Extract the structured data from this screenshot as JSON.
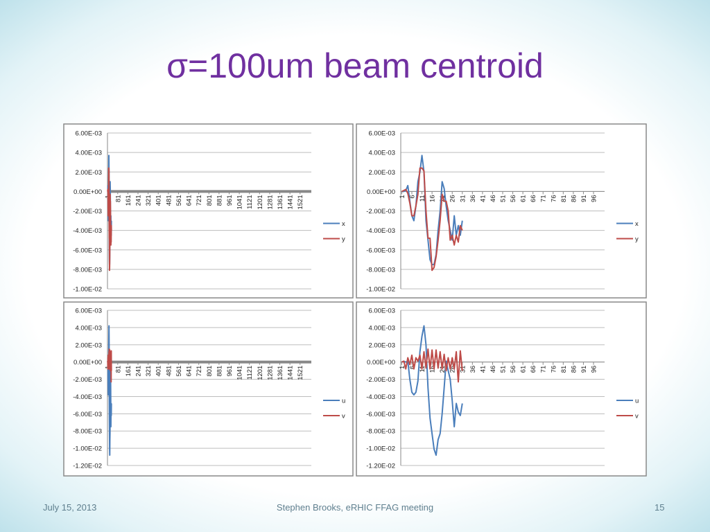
{
  "slide": {
    "title": "σ=100um beam centroid",
    "date": "July 15, 2013",
    "footer": "Stephen Brooks, eRHIC FFAG meeting",
    "page_number": "15"
  },
  "chart_data": [
    {
      "type": "line",
      "legend": "right",
      "grid": true,
      "x": [
        1,
        2,
        3,
        4,
        5,
        6,
        7,
        8,
        9,
        10,
        11,
        12,
        13,
        14,
        15,
        16,
        17,
        18,
        19,
        20,
        21,
        22,
        23,
        24,
        25,
        26,
        27,
        28,
        29,
        30,
        31
      ],
      "xlim": [
        0,
        1610
      ],
      "xticks": [
        1,
        81,
        161,
        241,
        321,
        401,
        481,
        561,
        641,
        721,
        801,
        881,
        961,
        1041,
        1121,
        1201,
        1281,
        1361,
        1441,
        1521
      ],
      "ylim": [
        -0.01,
        0.006
      ],
      "yticks": [
        {
          "value": -0.01,
          "label": "-1.00E-02"
        },
        {
          "value": -0.008,
          "label": "-8.00E-03"
        },
        {
          "value": -0.006,
          "label": "-6.00E-03"
        },
        {
          "value": -0.004,
          "label": "-4.00E-03"
        },
        {
          "value": -0.002,
          "label": "-2.00E-03"
        },
        {
          "value": 0,
          "label": "0.00E+00"
        },
        {
          "value": 0.002,
          "label": "2.00E-03"
        },
        {
          "value": 0.004,
          "label": "4.00E-03"
        },
        {
          "value": 0.006,
          "label": "6.00E-03"
        }
      ],
      "series": [
        {
          "name": "x",
          "color": "#4a7ebb",
          "values": [
            0,
            0,
            0.0001,
            0.0006,
            -0.001,
            -0.0025,
            -0.003,
            -0.0015,
            0.001,
            0.002,
            0.0037,
            0.002,
            -0.003,
            -0.005,
            -0.007,
            -0.0075,
            -0.0075,
            -0.0065,
            -0.004,
            -0.002,
            0.001,
            0.0003,
            -0.0015,
            -0.003,
            -0.004,
            -0.005,
            -0.0025,
            -0.0045,
            -0.0035,
            -0.0045,
            -0.003
          ]
        },
        {
          "name": "y",
          "color": "#be4b48",
          "values": [
            0,
            0.0001,
            0.0002,
            -0.0002,
            -0.0012,
            -0.0025,
            -0.0025,
            -0.0015,
            -0.0003,
            0.0024,
            0.0024,
            0.0021,
            -0.002,
            -0.0048,
            -0.0048,
            -0.0081,
            -0.0078,
            -0.0067,
            -0.005,
            -0.003,
            -0.0003,
            -0.001,
            -0.001,
            -0.002,
            -0.005,
            -0.0045,
            -0.0055,
            -0.0045,
            -0.0052,
            -0.0035,
            -0.004
          ]
        }
      ]
    },
    {
      "type": "line",
      "legend": "right",
      "grid": true,
      "x": [
        1,
        2,
        3,
        4,
        5,
        6,
        7,
        8,
        9,
        10,
        11,
        12,
        13,
        14,
        15,
        16,
        17,
        18,
        19,
        20,
        21,
        22,
        23,
        24,
        25,
        26,
        27,
        28,
        29,
        30,
        31
      ],
      "xlim": [
        0.5,
        101.5
      ],
      "xticks": [
        1,
        6,
        11,
        16,
        21,
        26,
        31,
        36,
        41,
        46,
        51,
        56,
        61,
        66,
        71,
        76,
        81,
        86,
        91,
        96
      ],
      "ylim": [
        -0.01,
        0.006
      ],
      "yticks": [
        {
          "value": -0.01,
          "label": "-1.00E-02"
        },
        {
          "value": -0.008,
          "label": "-8.00E-03"
        },
        {
          "value": -0.006,
          "label": "-6.00E-03"
        },
        {
          "value": -0.004,
          "label": "-4.00E-03"
        },
        {
          "value": -0.002,
          "label": "-2.00E-03"
        },
        {
          "value": 0,
          "label": "0.00E+00"
        },
        {
          "value": 0.002,
          "label": "2.00E-03"
        },
        {
          "value": 0.004,
          "label": "4.00E-03"
        },
        {
          "value": 0.006,
          "label": "6.00E-03"
        }
      ],
      "series": [
        {
          "name": "x",
          "color": "#4a7ebb",
          "values": [
            0,
            0,
            0.0001,
            0.0006,
            -0.001,
            -0.0025,
            -0.003,
            -0.0015,
            0.001,
            0.002,
            0.0037,
            0.002,
            -0.003,
            -0.005,
            -0.007,
            -0.0075,
            -0.0075,
            -0.0065,
            -0.004,
            -0.002,
            0.001,
            0.0003,
            -0.0015,
            -0.003,
            -0.004,
            -0.005,
            -0.0025,
            -0.0045,
            -0.0035,
            -0.0045,
            -0.003
          ]
        },
        {
          "name": "y",
          "color": "#be4b48",
          "values": [
            0,
            0.0001,
            0.0002,
            -0.0002,
            -0.0012,
            -0.0025,
            -0.0025,
            -0.0015,
            -0.0003,
            0.0024,
            0.0024,
            0.0021,
            -0.002,
            -0.0048,
            -0.0048,
            -0.0081,
            -0.0078,
            -0.0067,
            -0.005,
            -0.003,
            -0.0003,
            -0.001,
            -0.001,
            -0.002,
            -0.005,
            -0.0045,
            -0.0055,
            -0.0045,
            -0.0052,
            -0.0035,
            -0.004
          ]
        }
      ]
    },
    {
      "type": "line",
      "legend": "right",
      "grid": true,
      "x": [
        1,
        2,
        3,
        4,
        5,
        6,
        7,
        8,
        9,
        10,
        11,
        12,
        13,
        14,
        15,
        16,
        17,
        18,
        19,
        20,
        21,
        22,
        23,
        24,
        25,
        26,
        27,
        28,
        29,
        30,
        31
      ],
      "xlim": [
        0,
        1610
      ],
      "xticks": [
        1,
        81,
        161,
        241,
        321,
        401,
        481,
        561,
        641,
        721,
        801,
        881,
        961,
        1041,
        1121,
        1201,
        1281,
        1361,
        1441,
        1521
      ],
      "ylim": [
        -0.012,
        0.006
      ],
      "yticks": [
        {
          "value": -0.012,
          "label": "-1.20E-02"
        },
        {
          "value": -0.01,
          "label": "-1.00E-02"
        },
        {
          "value": -0.008,
          "label": "-8.00E-03"
        },
        {
          "value": -0.006,
          "label": "-6.00E-03"
        },
        {
          "value": -0.004,
          "label": "-4.00E-03"
        },
        {
          "value": -0.002,
          "label": "-2.00E-03"
        },
        {
          "value": 0,
          "label": "0.00E+00"
        },
        {
          "value": 0.002,
          "label": "2.00E-03"
        },
        {
          "value": 0.004,
          "label": "4.00E-03"
        },
        {
          "value": 0.006,
          "label": "6.00E-03"
        }
      ],
      "series": [
        {
          "name": "u",
          "color": "#4a7ebb",
          "values": [
            0,
            0.0001,
            0,
            0.0001,
            -0.002,
            -0.0035,
            -0.0038,
            -0.0035,
            -0.0022,
            0.0012,
            0.003,
            0.0042,
            0.002,
            -0.003,
            -0.0065,
            -0.0083,
            -0.0101,
            -0.0108,
            -0.009,
            -0.0083,
            -0.006,
            -0.003,
            0.0001,
            -0.001,
            -0.002,
            -0.0045,
            -0.0075,
            -0.0048,
            -0.0058,
            -0.0062,
            -0.0048
          ]
        },
        {
          "name": "v",
          "color": "#be4b48",
          "values": [
            0,
            0.0001,
            -0.0008,
            0.0005,
            -0.0003,
            0.0008,
            -0.0008,
            0.0005,
            0.0001,
            0.0008,
            -0.0008,
            0.0012,
            -0.0007,
            0.0015,
            -0.0008,
            0.0014,
            -0.0008,
            0.0014,
            -0.0007,
            0.0012,
            -0.0008,
            0.0009,
            -0.001,
            0.0005,
            -0.0008,
            0.0005,
            -0.0008,
            0.0012,
            -0.0023,
            0.0013,
            -0.001
          ]
        }
      ]
    },
    {
      "type": "line",
      "legend": "right",
      "grid": true,
      "x": [
        1,
        2,
        3,
        4,
        5,
        6,
        7,
        8,
        9,
        10,
        11,
        12,
        13,
        14,
        15,
        16,
        17,
        18,
        19,
        20,
        21,
        22,
        23,
        24,
        25,
        26,
        27,
        28,
        29,
        30,
        31
      ],
      "xlim": [
        0.5,
        101.5
      ],
      "xticks": [
        1,
        6,
        11,
        16,
        21,
        26,
        31,
        36,
        41,
        46,
        51,
        56,
        61,
        66,
        71,
        76,
        81,
        86,
        91,
        96
      ],
      "ylim": [
        -0.012,
        0.006
      ],
      "yticks": [
        {
          "value": -0.012,
          "label": "-1.20E-02"
        },
        {
          "value": -0.01,
          "label": "-1.00E-02"
        },
        {
          "value": -0.008,
          "label": "-8.00E-03"
        },
        {
          "value": -0.006,
          "label": "-6.00E-03"
        },
        {
          "value": -0.004,
          "label": "-4.00E-03"
        },
        {
          "value": -0.002,
          "label": "-2.00E-03"
        },
        {
          "value": 0,
          "label": "0.00E+00"
        },
        {
          "value": 0.002,
          "label": "2.00E-03"
        },
        {
          "value": 0.004,
          "label": "4.00E-03"
        },
        {
          "value": 0.006,
          "label": "6.00E-03"
        }
      ],
      "series": [
        {
          "name": "u",
          "color": "#4a7ebb",
          "values": [
            0,
            0.0001,
            0,
            0.0001,
            -0.002,
            -0.0035,
            -0.0038,
            -0.0035,
            -0.0022,
            0.0012,
            0.003,
            0.0042,
            0.002,
            -0.003,
            -0.0065,
            -0.0083,
            -0.0101,
            -0.0108,
            -0.009,
            -0.0083,
            -0.006,
            -0.003,
            0.0001,
            -0.001,
            -0.002,
            -0.0045,
            -0.0075,
            -0.0048,
            -0.0058,
            -0.0062,
            -0.0048
          ]
        },
        {
          "name": "v",
          "color": "#be4b48",
          "values": [
            0,
            0.0001,
            -0.0008,
            0.0005,
            -0.0003,
            0.0008,
            -0.0008,
            0.0005,
            0.0001,
            0.0008,
            -0.0008,
            0.0012,
            -0.0007,
            0.0015,
            -0.0008,
            0.0014,
            -0.0008,
            0.0014,
            -0.0007,
            0.0012,
            -0.0008,
            0.0009,
            -0.001,
            0.0005,
            -0.0008,
            0.0005,
            -0.0008,
            0.0012,
            -0.0023,
            0.0013,
            -0.001
          ]
        }
      ]
    }
  ]
}
